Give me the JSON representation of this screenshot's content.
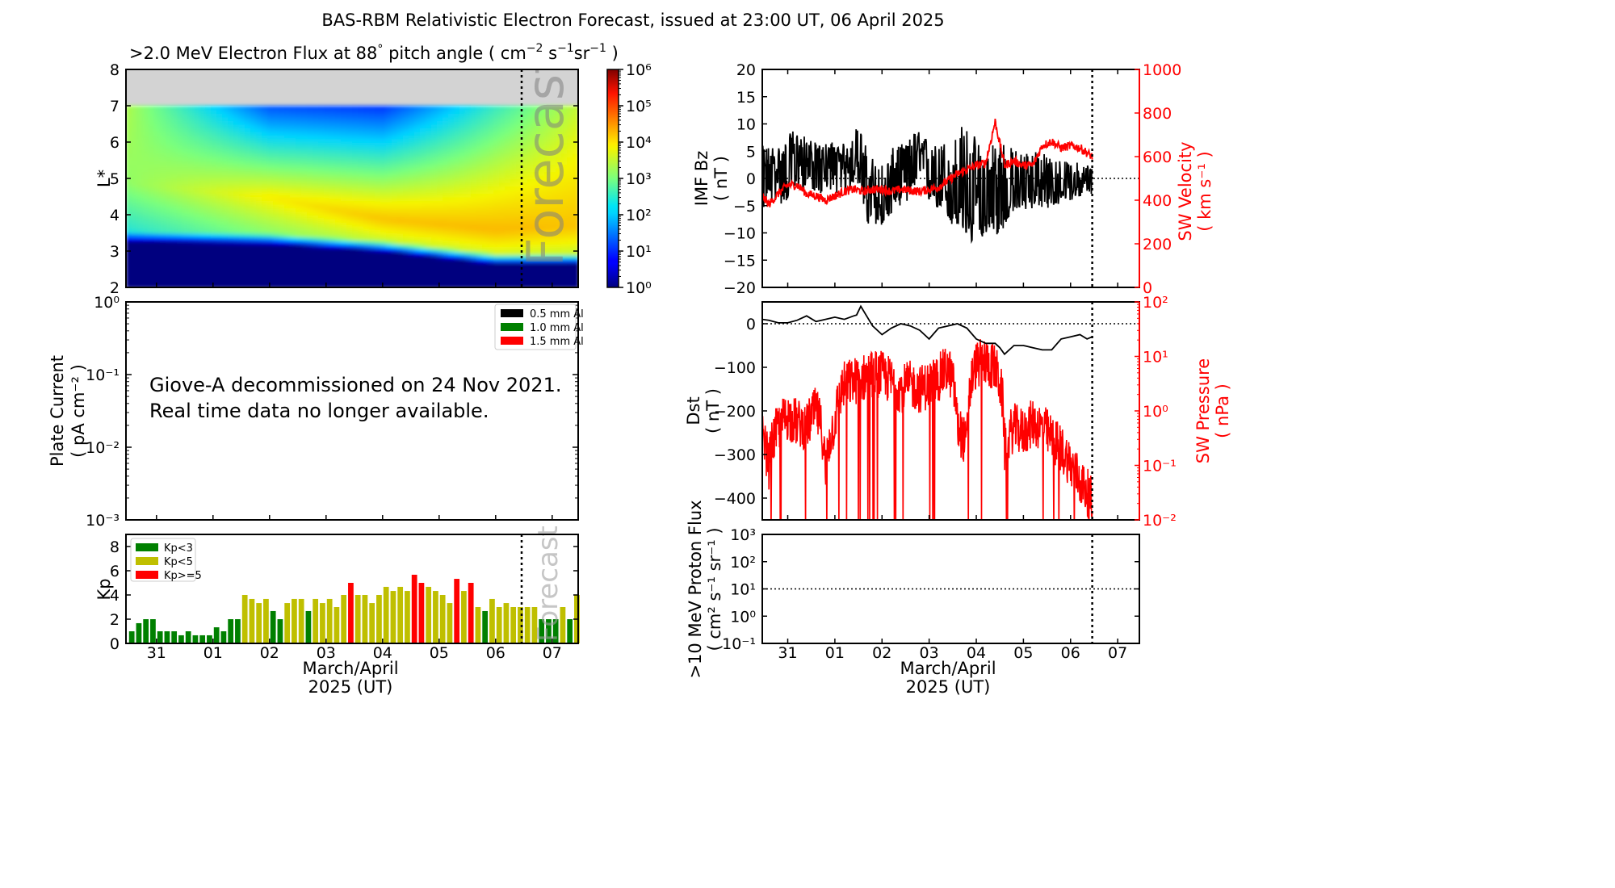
{
  "figure_title": "BAS-RBM Relativistic Electron Forecast, issued at 23:00 UT, 06 April 2025",
  "chart_data": [
    {
      "id": "electron-flux",
      "type": "heatmap",
      "title": ">2.0 MeV Electron Flux at 88° pitch angle ( cm⁻² s⁻¹ sr⁻¹ )",
      "title_parts": {
        "main": ">2.0 MeV Electron Flux at 88",
        "deg": "°",
        "rest": " pitch angle ( cm",
        "sup1": "−2",
        "s": " s",
        "sup2": "−1",
        "sr": "sr",
        "sup3": "−1",
        "close": " )"
      },
      "ylabel": "L*",
      "ylim": [
        2,
        8
      ],
      "yticks": [
        "2",
        "3",
        "4",
        "5",
        "6",
        "7",
        "8"
      ],
      "xlim_days": [
        -0.54,
        7.46
      ],
      "no_data_above_L": 7,
      "no_data_color": "#d3d3d3",
      "forecast_label": "Forecast",
      "forecast_start_day": 7.46,
      "colorbar": {
        "scale": "log",
        "range": [
          1,
          1000000
        ],
        "ticks": [
          "10⁰",
          "10¹",
          "10²",
          "10³",
          "10⁴",
          "10⁵",
          "10⁶"
        ],
        "colormap": "jet"
      },
      "description_profiles": [
        {
          "day": 0.0,
          "inner_edge_L": 3.25,
          "peak_L": 4.8,
          "peak_log_flux": 3.3,
          "outer_log_flux": 2.9
        },
        {
          "day": 2.0,
          "inner_edge_L": 3.2,
          "peak_L": 4.5,
          "peak_log_flux": 3.9,
          "outer_log_flux": 1.2
        },
        {
          "day": 4.0,
          "inner_edge_L": 3.0,
          "peak_L": 3.9,
          "peak_log_flux": 4.3,
          "outer_log_flux": 1.0
        },
        {
          "day": 6.0,
          "inner_edge_L": 2.65,
          "peak_L": 3.6,
          "peak_log_flux": 4.4,
          "outer_log_flux": 2.5
        },
        {
          "day": 7.46,
          "inner_edge_L": 2.65,
          "peak_L": 3.7,
          "peak_log_flux": 4.3,
          "outer_log_flux": 3.5
        }
      ]
    },
    {
      "id": "plate-current",
      "type": "line",
      "ylabel": "Plate Current",
      "ylabel_units": "( pA cm⁻² )",
      "yscale": "log",
      "ylim": [
        0.001,
        1
      ],
      "yticks": [
        "10⁻³",
        "10⁻²",
        "10⁻¹",
        "10⁰"
      ],
      "legend": [
        {
          "label": "0.5 mm Al",
          "color": "#000000"
        },
        {
          "label": "1.0 mm Al",
          "color": "#008000"
        },
        {
          "label": "1.5 mm Al",
          "color": "#ff0000"
        }
      ],
      "legend_position": "top-right",
      "annotation": [
        "Giove-A decommissioned on 24 Nov 2021.",
        "Real time data no longer available."
      ],
      "series": []
    },
    {
      "id": "kp",
      "type": "bar",
      "ylabel": "Kp",
      "ylim": [
        0,
        9
      ],
      "yticks": [
        "0",
        "2",
        "4",
        "6",
        "8"
      ],
      "xlabel": "March/April",
      "xlabel2": "2025 (UT)",
      "xticks": [
        "31",
        "01",
        "02",
        "03",
        "04",
        "05",
        "06",
        "07"
      ],
      "xtick_days": [
        0,
        1,
        2,
        3,
        4,
        5,
        6,
        7
      ],
      "xlim_days": [
        -0.54,
        7.46
      ],
      "bin_hours": 3,
      "first_bin_start_day": -0.5,
      "forecast_label": "Forecast",
      "forecast_start_day": 6.46,
      "legend": [
        {
          "label": "Kp<3",
          "color": "#008000"
        },
        {
          "label": "Kp<5",
          "color": "#bfbf00"
        },
        {
          "label": "Kp>=5",
          "color": "#ff0000"
        }
      ],
      "legend_position": "top-left",
      "values": [
        1.0,
        1.67,
        2.0,
        2.0,
        1.0,
        1.0,
        1.0,
        0.67,
        1.0,
        0.67,
        0.67,
        0.67,
        1.33,
        1.0,
        2.0,
        2.0,
        4.0,
        3.67,
        3.33,
        3.67,
        2.67,
        2.0,
        3.33,
        3.67,
        3.67,
        2.67,
        3.67,
        3.33,
        3.67,
        3.0,
        4.0,
        5.0,
        4.0,
        4.0,
        3.33,
        4.0,
        4.67,
        4.33,
        4.67,
        4.33,
        5.67,
        5.0,
        4.67,
        4.33,
        4.0,
        3.33,
        5.33,
        4.33,
        5.0,
        3.0,
        2.67,
        3.67,
        3.0,
        3.33,
        3.0,
        3.0,
        3.0,
        3.0,
        2.0,
        2.0,
        2.0,
        3.0,
        2.0,
        4.0
      ]
    },
    {
      "id": "imf-bz-sw-velocity",
      "type": "line",
      "ylabel": "IMF Bz",
      "ylabel_units": "( nT )",
      "ylim": [
        -20,
        20
      ],
      "yticks": [
        "−20",
        "−15",
        "−10",
        "−5",
        "0",
        "5",
        "10",
        "15",
        "20"
      ],
      "y2label": "SW Velocity",
      "y2label_units": "( km s⁻¹ )",
      "y2lim": [
        0,
        1000
      ],
      "y2ticks": [
        "0",
        "200",
        "400",
        "600",
        "800",
        "1000"
      ],
      "xlim_days": [
        -0.54,
        7.46
      ],
      "forecast_start_day": 6.46,
      "series": [
        {
          "name": "IMF Bz",
          "color": "#000000",
          "axis": "left",
          "x": [
            -0.54,
            -0.3,
            -0.1,
            0.1,
            0.3,
            0.5,
            0.7,
            0.9,
            1.1,
            1.3,
            1.5,
            1.7,
            1.9,
            2.1,
            2.3,
            2.5,
            2.7,
            2.9,
            3.1,
            3.3,
            3.5,
            3.7,
            3.9,
            4.1,
            4.3,
            4.5,
            4.7,
            4.9,
            5.1,
            5.3,
            5.5,
            5.7,
            5.9,
            6.1,
            6.3,
            6.46
          ],
          "y": [
            0,
            2,
            1,
            3,
            4,
            3,
            2,
            3,
            2,
            3,
            4,
            -3,
            -6,
            -4,
            -2,
            3,
            4,
            2,
            1,
            -2,
            -3,
            -4,
            -6,
            -8,
            -5,
            -7,
            -3,
            -2,
            -2,
            -1,
            -3,
            -2,
            -1,
            -1,
            -1,
            0
          ],
          "min": [
            -6,
            -4,
            -5,
            -3,
            -2,
            -2,
            -3,
            -2,
            -3,
            -2,
            -1,
            -9,
            -9,
            -8,
            -5,
            -5,
            -3,
            -4,
            -5,
            -7,
            -9,
            -10,
            -12,
            -11,
            -9,
            -11,
            -7,
            -6,
            -6,
            -5,
            -6,
            -5,
            -4,
            -4,
            -3,
            -3
          ],
          "max": [
            6,
            6,
            6,
            9,
            8,
            7,
            6,
            7,
            6,
            7,
            10,
            5,
            3,
            3,
            7,
            6,
            9,
            8,
            6,
            7,
            7,
            10,
            9,
            6,
            7,
            9,
            6,
            5,
            5,
            6,
            4,
            4,
            3,
            3,
            3,
            2
          ]
        },
        {
          "name": "SW Velocity",
          "color": "#ff0000",
          "axis": "right",
          "x": [
            -0.54,
            -0.4,
            -0.2,
            0.0,
            0.2,
            0.4,
            0.6,
            0.8,
            1.0,
            1.2,
            1.4,
            1.6,
            1.8,
            2.0,
            2.2,
            2.4,
            2.6,
            2.8,
            3.0,
            3.2,
            3.4,
            3.6,
            3.8,
            4.0,
            4.2,
            4.4,
            4.6,
            4.8,
            5.0,
            5.2,
            5.4,
            5.6,
            5.8,
            6.0,
            6.2,
            6.46
          ],
          "y": [
            420,
            380,
            430,
            470,
            470,
            430,
            420,
            400,
            420,
            440,
            450,
            440,
            450,
            450,
            440,
            450,
            445,
            440,
            450,
            460,
            490,
            520,
            540,
            560,
            570,
            760,
            560,
            580,
            560,
            560,
            650,
            670,
            640,
            650,
            640,
            600
          ]
        }
      ]
    },
    {
      "id": "dst-sw-pressure",
      "type": "line",
      "ylabel": "Dst",
      "ylabel_units": "( nT )",
      "ylim": [
        -450,
        50
      ],
      "yticks": [
        "−400",
        "−300",
        "−200",
        "−100",
        "0"
      ],
      "y2label": "SW Pressure",
      "y2label_units": "( nPa )",
      "y2scale": "log",
      "y2lim": [
        0.01,
        100
      ],
      "y2ticks": [
        "10⁻²",
        "10⁻¹",
        "10⁰",
        "10¹",
        "10²"
      ],
      "xlim_days": [
        -0.54,
        7.46
      ],
      "forecast_start_day": 6.46,
      "series": [
        {
          "name": "Dst",
          "color": "#000000",
          "axis": "left",
          "x": [
            -0.54,
            -0.4,
            -0.2,
            0.0,
            0.2,
            0.4,
            0.6,
            0.8,
            1.0,
            1.2,
            1.4,
            1.46,
            1.55,
            1.8,
            2.0,
            2.2,
            2.4,
            2.6,
            2.8,
            3.0,
            3.2,
            3.4,
            3.6,
            3.8,
            4.0,
            4.2,
            4.4,
            4.5,
            4.6,
            4.8,
            5.0,
            5.2,
            5.4,
            5.6,
            5.8,
            6.0,
            6.2,
            6.35,
            6.46
          ],
          "y": [
            10,
            8,
            2,
            2,
            8,
            18,
            5,
            10,
            15,
            10,
            18,
            20,
            40,
            -5,
            -25,
            -10,
            0,
            -5,
            -15,
            -35,
            -10,
            -5,
            0,
            -10,
            -35,
            -45,
            -45,
            -55,
            -70,
            -50,
            -50,
            -55,
            -60,
            -60,
            -35,
            -30,
            -25,
            -35,
            -30
          ]
        },
        {
          "name": "SW Pressure",
          "color": "#ff0000",
          "axis": "right",
          "x": [
            -0.54,
            -0.4,
            -0.2,
            0.0,
            0.2,
            0.4,
            0.6,
            0.8,
            1.0,
            1.2,
            1.4,
            1.6,
            1.8,
            2.0,
            2.2,
            2.4,
            2.6,
            2.8,
            3.0,
            3.2,
            3.4,
            3.6,
            3.8,
            4.0,
            4.2,
            4.4,
            4.6,
            4.8,
            5.0,
            5.2,
            5.4,
            5.6,
            5.8,
            6.0,
            6.2,
            6.46
          ],
          "y": [
            0.3,
            0.1,
            0.5,
            0.8,
            0.6,
            0.5,
            1.0,
            0.05,
            0.6,
            3.0,
            3.5,
            4.0,
            5.0,
            4.5,
            3.5,
            2.5,
            3.0,
            2.5,
            3.0,
            4.0,
            6.0,
            0.5,
            0.2,
            7.0,
            8.0,
            6.0,
            0.2,
            0.5,
            0.4,
            0.6,
            0.5,
            0.3,
            0.2,
            0.1,
            0.05,
            0.02
          ]
        }
      ]
    },
    {
      "id": "proton-flux",
      "type": "line",
      "ylabel": ">10 MeV Proton Flux",
      "ylabel_units": "( cm² s⁻¹ sr⁻¹ )",
      "yscale": "log",
      "ylim": [
        0.1,
        1000
      ],
      "yticks": [
        "10⁻¹",
        "10⁰",
        "10¹",
        "10²",
        "10³"
      ],
      "threshold": 10,
      "xlabel": "March/April",
      "xlabel2": "2025 (UT)",
      "xticks": [
        "31",
        "01",
        "02",
        "03",
        "04",
        "05",
        "06",
        "07"
      ],
      "xtick_days": [
        0,
        1,
        2,
        3,
        4,
        5,
        6,
        7
      ],
      "xlim_days": [
        -0.54,
        7.46
      ],
      "forecast_start_day": 6.46,
      "series": []
    }
  ]
}
